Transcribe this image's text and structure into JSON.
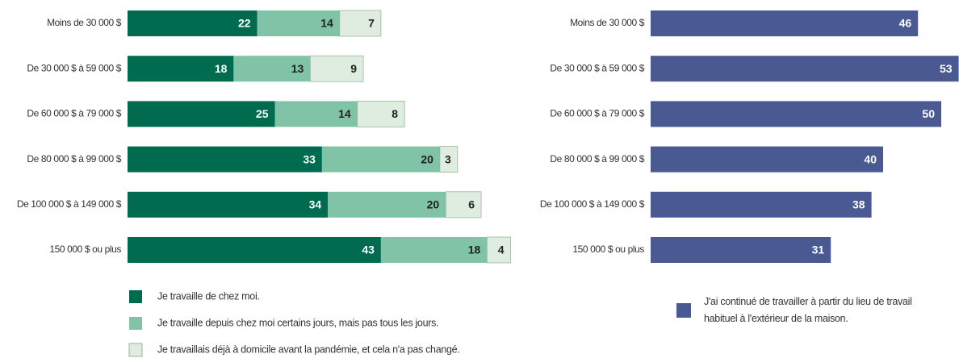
{
  "chart_data": [
    {
      "type": "stacked-bar",
      "orientation": "horizontal",
      "categories": [
        "Moins de 30 000 $",
        "De 30 000 $ à 59 000 $",
        "De 60 000 $ à 79 000 $",
        "De 80 000 $ à 99 000 $",
        "De 100 000 $ à 149 000 $",
        "150 000 $ ou plus"
      ],
      "series": [
        {
          "name": "Je travaille de chez moi.",
          "color": "#006b4f",
          "label_color": "#ffffff",
          "values": [
            22,
            18,
            25,
            33,
            34,
            43
          ]
        },
        {
          "name": "Je travaille depuis chez moi certains jours, mais pas tous les jours.",
          "color": "#80c3a6",
          "label_color": "#222222",
          "values": [
            14,
            13,
            14,
            20,
            20,
            18
          ]
        },
        {
          "name": "Je travaillais déjà à domicile avant la pandémie, et cela n'a pas changé.",
          "color": "#deeddf",
          "label_color": "#222222",
          "values": [
            7,
            9,
            8,
            3,
            6,
            4
          ]
        }
      ]
    },
    {
      "type": "bar",
      "orientation": "horizontal",
      "categories": [
        "Moins de 30 000 $",
        "De 30 000 $ à 59 000 $",
        "De 60 000 $ à 79 000 $",
        "De 80 000 $ à 99 000 $",
        "De 100 000 $ à 149 000 $",
        "150 000 $ ou plus"
      ],
      "series": [
        {
          "name": "J'ai continué de travailler à partir du lieu de travail habituel à l'extérieur de la maison.",
          "color": "#4a5991",
          "label_color": "#ffffff",
          "values": [
            46,
            53,
            50,
            40,
            38,
            31
          ]
        }
      ]
    }
  ]
}
